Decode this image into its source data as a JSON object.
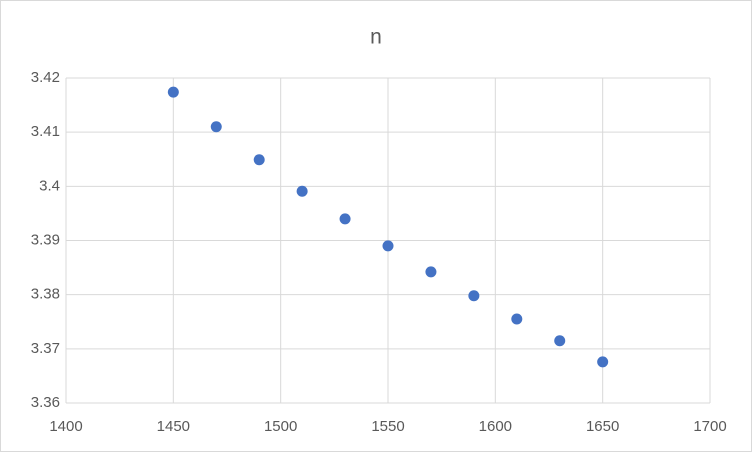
{
  "chart_data": {
    "type": "scatter",
    "title": "n",
    "x": [
      1450,
      1470,
      1490,
      1510,
      1530,
      1550,
      1570,
      1590,
      1610,
      1630,
      1650
    ],
    "values": [
      3.4174,
      3.411,
      3.4049,
      3.3991,
      3.394,
      3.389,
      3.3842,
      3.3798,
      3.3755,
      3.3715,
      3.3676
    ],
    "color": "#4472c4",
    "xlim": [
      1400,
      1700
    ],
    "xticks": [
      1400,
      1450,
      1500,
      1550,
      1600,
      1650,
      1700
    ],
    "ylim": [
      3.36,
      3.42
    ],
    "yticks": [
      3.36,
      3.37,
      3.38,
      3.39,
      3.4,
      3.41,
      3.42
    ],
    "grid": true
  }
}
